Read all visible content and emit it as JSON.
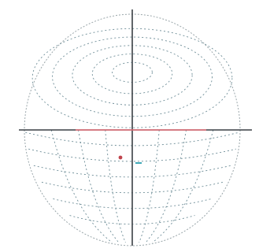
{
  "diagram": {
    "kind": "spherical projection net",
    "colors": {
      "background": "#ffffff",
      "axes": "#3a3f44",
      "grid": "#6f8e98",
      "equator": "#e8707a",
      "marker": "#c0444c",
      "marker_secondary": "#3fa9b8",
      "boundary": "#9aa6aa"
    },
    "grid_style": "dashed",
    "upper_cap_circles": 5,
    "lower_arcs": 6,
    "meridians": 6,
    "markers": [
      {
        "name": "point-red",
        "shape": "dot"
      },
      {
        "name": "point-teal",
        "shape": "dash"
      }
    ]
  }
}
